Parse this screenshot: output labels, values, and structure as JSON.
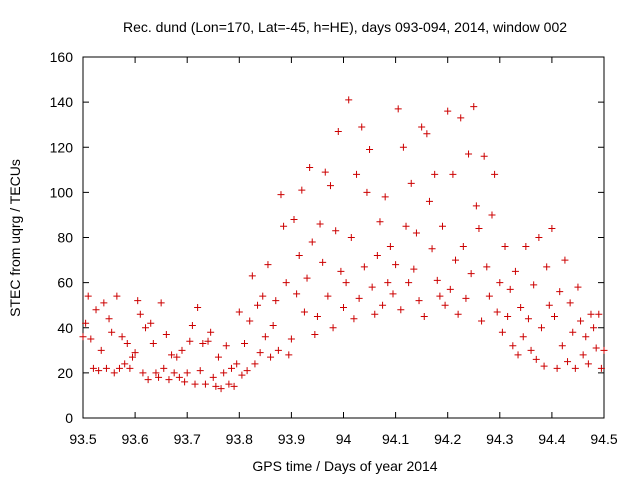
{
  "chart_data": {
    "type": "scatter",
    "title": "Rec. dund (Lon=170, Lat=-45, h=HE), days 093-094, 2014, window 002",
    "xlabel": "GPS time / Days of year 2014",
    "ylabel": "STEC from uqrg / TECUs",
    "xlim": [
      93.5,
      94.5
    ],
    "ylim": [
      0,
      160
    ],
    "xticks": [
      93.5,
      93.6,
      93.7,
      93.8,
      93.9,
      94,
      94.1,
      94.2,
      94.3,
      94.4,
      94.5
    ],
    "xtick_labels": [
      "93.5",
      "93.6",
      "93.7",
      "93.8",
      "93.9",
      "94",
      "94.1",
      "94.2",
      "94.3",
      "94.4",
      "94.5"
    ],
    "yticks": [
      0,
      20,
      40,
      60,
      80,
      100,
      120,
      140,
      160
    ],
    "ytick_labels": [
      "0",
      "20",
      "40",
      "60",
      "80",
      "100",
      "120",
      "140",
      "160"
    ],
    "marker": "+",
    "color": "#cc0000",
    "grid": false,
    "legend": "none",
    "points": [
      [
        93.5,
        36
      ],
      [
        93.505,
        42
      ],
      [
        93.51,
        54
      ],
      [
        93.515,
        35
      ],
      [
        93.52,
        22
      ],
      [
        93.525,
        48
      ],
      [
        93.53,
        21
      ],
      [
        93.535,
        30
      ],
      [
        93.54,
        51
      ],
      [
        93.545,
        22
      ],
      [
        93.55,
        44
      ],
      [
        93.555,
        38
      ],
      [
        93.56,
        20
      ],
      [
        93.565,
        54
      ],
      [
        93.57,
        22
      ],
      [
        93.575,
        36
      ],
      [
        93.58,
        24
      ],
      [
        93.585,
        33
      ],
      [
        93.59,
        22
      ],
      [
        93.595,
        27
      ],
      [
        93.6,
        29
      ],
      [
        93.605,
        52
      ],
      [
        93.61,
        46
      ],
      [
        93.615,
        20
      ],
      [
        93.62,
        40
      ],
      [
        93.625,
        17
      ],
      [
        93.63,
        42
      ],
      [
        93.635,
        33
      ],
      [
        93.64,
        20
      ],
      [
        93.645,
        18
      ],
      [
        93.65,
        51
      ],
      [
        93.655,
        22
      ],
      [
        93.66,
        37
      ],
      [
        93.665,
        17
      ],
      [
        93.67,
        28
      ],
      [
        93.675,
        20
      ],
      [
        93.68,
        27
      ],
      [
        93.685,
        18
      ],
      [
        93.69,
        30
      ],
      [
        93.695,
        16
      ],
      [
        93.7,
        20
      ],
      [
        93.705,
        34
      ],
      [
        93.71,
        41
      ],
      [
        93.715,
        15
      ],
      [
        93.72,
        49
      ],
      [
        93.725,
        21
      ],
      [
        93.73,
        33
      ],
      [
        93.735,
        15
      ],
      [
        93.74,
        34
      ],
      [
        93.745,
        38
      ],
      [
        93.75,
        18
      ],
      [
        93.755,
        14
      ],
      [
        93.76,
        27
      ],
      [
        93.765,
        13
      ],
      [
        93.77,
        20
      ],
      [
        93.775,
        32
      ],
      [
        93.78,
        15
      ],
      [
        93.785,
        22
      ],
      [
        93.79,
        14
      ],
      [
        93.795,
        24
      ],
      [
        93.8,
        47
      ],
      [
        93.805,
        19
      ],
      [
        93.81,
        33
      ],
      [
        93.815,
        21
      ],
      [
        93.82,
        43
      ],
      [
        93.825,
        63
      ],
      [
        93.83,
        24
      ],
      [
        93.835,
        50
      ],
      [
        93.84,
        29
      ],
      [
        93.845,
        54
      ],
      [
        93.85,
        36
      ],
      [
        93.855,
        68
      ],
      [
        93.86,
        27
      ],
      [
        93.865,
        41
      ],
      [
        93.87,
        52
      ],
      [
        93.875,
        30
      ],
      [
        93.88,
        99
      ],
      [
        93.885,
        85
      ],
      [
        93.89,
        60
      ],
      [
        93.895,
        28
      ],
      [
        93.9,
        35
      ],
      [
        93.905,
        88
      ],
      [
        93.91,
        55
      ],
      [
        93.915,
        72
      ],
      [
        93.92,
        101
      ],
      [
        93.925,
        47
      ],
      [
        93.93,
        62
      ],
      [
        93.935,
        111
      ],
      [
        93.94,
        78
      ],
      [
        93.945,
        37
      ],
      [
        93.95,
        45
      ],
      [
        93.955,
        86
      ],
      [
        93.96,
        69
      ],
      [
        93.965,
        109
      ],
      [
        93.97,
        54
      ],
      [
        93.975,
        103
      ],
      [
        93.98,
        40
      ],
      [
        93.985,
        83
      ],
      [
        93.99,
        127
      ],
      [
        93.995,
        65
      ],
      [
        94.0,
        49
      ],
      [
        94.005,
        60
      ],
      [
        94.01,
        141
      ],
      [
        94.015,
        80
      ],
      [
        94.02,
        44
      ],
      [
        94.025,
        108
      ],
      [
        94.03,
        53
      ],
      [
        94.035,
        129
      ],
      [
        94.04,
        67
      ],
      [
        94.045,
        100
      ],
      [
        94.05,
        119
      ],
      [
        94.055,
        58
      ],
      [
        94.06,
        46
      ],
      [
        94.065,
        72
      ],
      [
        94.07,
        87
      ],
      [
        94.075,
        50
      ],
      [
        94.08,
        98
      ],
      [
        94.085,
        60
      ],
      [
        94.09,
        76
      ],
      [
        94.095,
        55
      ],
      [
        94.1,
        68
      ],
      [
        94.105,
        137
      ],
      [
        94.11,
        48
      ],
      [
        94.115,
        120
      ],
      [
        94.12,
        85
      ],
      [
        94.125,
        60
      ],
      [
        94.13,
        104
      ],
      [
        94.135,
        66
      ],
      [
        94.14,
        82
      ],
      [
        94.145,
        52
      ],
      [
        94.15,
        129
      ],
      [
        94.155,
        45
      ],
      [
        94.16,
        126
      ],
      [
        94.165,
        96
      ],
      [
        94.17,
        75
      ],
      [
        94.175,
        108
      ],
      [
        94.18,
        61
      ],
      [
        94.185,
        54
      ],
      [
        94.19,
        85
      ],
      [
        94.195,
        50
      ],
      [
        94.2,
        136
      ],
      [
        94.205,
        57
      ],
      [
        94.21,
        108
      ],
      [
        94.215,
        70
      ],
      [
        94.22,
        46
      ],
      [
        94.225,
        133
      ],
      [
        94.23,
        76
      ],
      [
        94.235,
        53
      ],
      [
        94.24,
        117
      ],
      [
        94.245,
        64
      ],
      [
        94.25,
        138
      ],
      [
        94.255,
        94
      ],
      [
        94.26,
        84
      ],
      [
        94.265,
        43
      ],
      [
        94.27,
        116
      ],
      [
        94.275,
        67
      ],
      [
        94.28,
        54
      ],
      [
        94.285,
        90
      ],
      [
        94.29,
        108
      ],
      [
        94.295,
        47
      ],
      [
        94.3,
        60
      ],
      [
        94.305,
        38
      ],
      [
        94.31,
        76
      ],
      [
        94.315,
        45
      ],
      [
        94.32,
        57
      ],
      [
        94.325,
        32
      ],
      [
        94.33,
        65
      ],
      [
        94.335,
        28
      ],
      [
        94.34,
        49
      ],
      [
        94.345,
        36
      ],
      [
        94.35,
        76
      ],
      [
        94.355,
        44
      ],
      [
        94.36,
        30
      ],
      [
        94.365,
        59
      ],
      [
        94.37,
        26
      ],
      [
        94.375,
        80
      ],
      [
        94.38,
        40
      ],
      [
        94.385,
        23
      ],
      [
        94.39,
        67
      ],
      [
        94.395,
        50
      ],
      [
        94.4,
        84
      ],
      [
        94.405,
        45
      ],
      [
        94.41,
        22
      ],
      [
        94.415,
        56
      ],
      [
        94.42,
        32
      ],
      [
        94.425,
        70
      ],
      [
        94.43,
        25
      ],
      [
        94.435,
        51
      ],
      [
        94.44,
        38
      ],
      [
        94.445,
        22
      ],
      [
        94.45,
        58
      ],
      [
        94.455,
        43
      ],
      [
        94.46,
        28
      ],
      [
        94.465,
        36
      ],
      [
        94.47,
        24
      ],
      [
        94.475,
        46
      ],
      [
        94.48,
        40
      ],
      [
        94.485,
        31
      ],
      [
        94.49,
        46
      ],
      [
        94.495,
        22
      ],
      [
        94.5,
        30
      ]
    ]
  }
}
